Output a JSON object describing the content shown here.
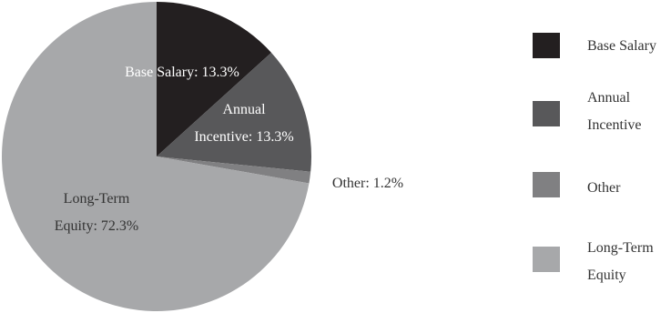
{
  "chart_data": {
    "type": "pie",
    "title": "",
    "start_angle_deg": 0,
    "direction": "clockwise",
    "slices": [
      {
        "name": "Base Salary",
        "value": 13.3,
        "color": "#231f20",
        "label_lines": [
          "Base Salary: 13.3%"
        ],
        "label_color": "#ffffff",
        "legend_lines": [
          "Base Salary"
        ]
      },
      {
        "name": "Annual Incentive",
        "value": 13.3,
        "color": "#58585a",
        "label_lines": [
          "Annual",
          "Incentive: 13.3%"
        ],
        "label_color": "#ffffff",
        "legend_lines": [
          "Annual",
          "Incentive"
        ]
      },
      {
        "name": "Other",
        "value": 1.2,
        "color": "#808082",
        "label_lines": [
          "Other: 1.2%"
        ],
        "label_color": "#333333",
        "legend_lines": [
          "Other"
        ]
      },
      {
        "name": "Long-Term Equity",
        "value": 72.3,
        "color": "#a7a8aa",
        "label_lines": [
          "Long-Term",
          "Equity: 72.3%"
        ],
        "label_color": "#333333",
        "legend_lines": [
          "Long-Term",
          "Equity"
        ]
      }
    ],
    "legend_position": "right"
  }
}
